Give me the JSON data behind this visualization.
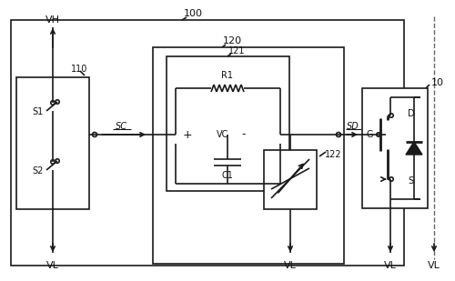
{
  "lc": "#1a1a1a",
  "bg": "#f2f2f2",
  "label_100": "100",
  "label_110": "110",
  "label_120": "120",
  "label_121": "121",
  "label_122": "122",
  "label_10": "10",
  "label_VH": "VH",
  "label_VL": "VL",
  "label_SC": "SC",
  "label_SD": "SD",
  "label_S1": "S1",
  "label_S2": "S2",
  "label_R1": "R1",
  "label_C1": "C1",
  "label_G": "G",
  "label_D": "D",
  "label_S": "S"
}
